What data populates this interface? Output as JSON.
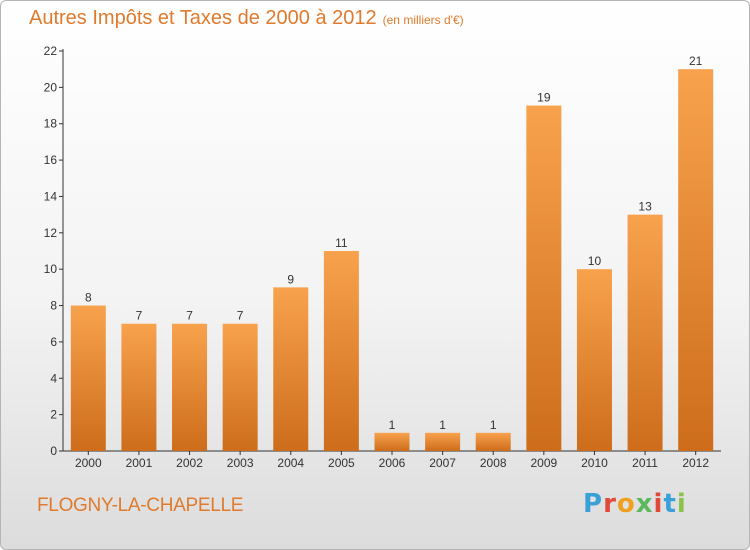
{
  "page": {
    "title": "Autres Impôts et Taxes de 2000 à 2012",
    "unit": "(en milliers d'€)",
    "commune": "FLOGNY-LA-CHAPELLE",
    "logo": {
      "text": "Proxiti",
      "colors": [
        "#3aa0d8",
        "#e0483a",
        "#f0a020",
        "#5cb85c",
        "#e0483a",
        "#3aa0d8",
        "#8bc34a"
      ]
    }
  },
  "colors": {
    "bar_top": "#f8a24d",
    "bar_bottom": "#cd6d1b",
    "text": "#333333",
    "title": "#e07a2c",
    "axis": "#333333"
  },
  "chart_data": {
    "type": "bar",
    "title": "Autres Impôts et Taxes de 2000 à 2012",
    "subtitle": "(en milliers d'€)",
    "categories": [
      "2000",
      "2001",
      "2002",
      "2003",
      "2004",
      "2005",
      "2006",
      "2007",
      "2008",
      "2009",
      "2010",
      "2011",
      "2012"
    ],
    "values": [
      8,
      7,
      7,
      7,
      9,
      11,
      1,
      1,
      1,
      19,
      10,
      13,
      21
    ],
    "ylim": [
      0,
      22
    ],
    "yticks": [
      0,
      2,
      4,
      6,
      8,
      10,
      12,
      14,
      16,
      18,
      20,
      22
    ],
    "grid": false,
    "legend": "none"
  }
}
